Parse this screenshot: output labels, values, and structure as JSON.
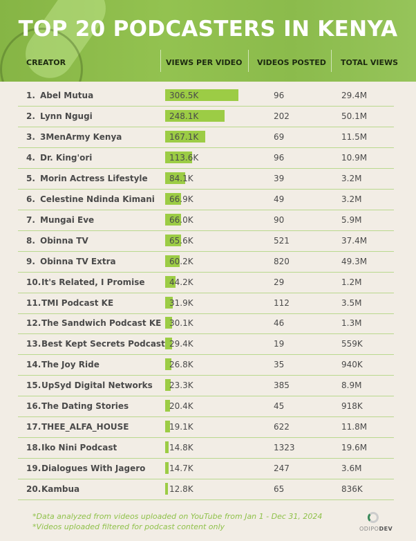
{
  "title": "TOP 20 PODCASTERS IN KENYA",
  "chart_data": {
    "type": "table",
    "title": "TOP 20 PODCASTERS IN KENYA",
    "columns": [
      "CREATOR",
      "VIEWS PER VIDEO",
      "VIDEOS POSTED",
      "TOTAL VIEWS"
    ],
    "bar_color": "#9ccc45",
    "rows": [
      {
        "rank": "1.",
        "creator": "Abel Mutua",
        "vpv": 306.5,
        "vpv_label": "306.5K",
        "videos": "96",
        "total": "29.4M"
      },
      {
        "rank": "2.",
        "creator": "Lynn Ngugi",
        "vpv": 248.1,
        "vpv_label": "248.1K",
        "videos": "202",
        "total": "50.1M"
      },
      {
        "rank": "3.",
        "creator": "3MenArmy Kenya",
        "vpv": 167.1,
        "vpv_label": "167.1K",
        "videos": "69",
        "total": "11.5M"
      },
      {
        "rank": "4.",
        "creator": "Dr. King'ori",
        "vpv": 113.6,
        "vpv_label": "113.6K",
        "videos": "96",
        "total": "10.9M"
      },
      {
        "rank": "5.",
        "creator": "Morin Actress Lifestyle",
        "vpv": 84.1,
        "vpv_label": "84.1K",
        "videos": "39",
        "total": "3.2M"
      },
      {
        "rank": "6.",
        "creator": "Celestine Ndinda Kimani",
        "vpv": 66.9,
        "vpv_label": "66.9K",
        "videos": "49",
        "total": "3.2M"
      },
      {
        "rank": "7.",
        "creator": "Mungai Eve",
        "vpv": 66.0,
        "vpv_label": "66.0K",
        "videos": "90",
        "total": "5.9M"
      },
      {
        "rank": "8.",
        "creator": "Obinna TV",
        "vpv": 65.6,
        "vpv_label": "65.6K",
        "videos": "521",
        "total": "37.4M"
      },
      {
        "rank": "9.",
        "creator": "Obinna TV Extra",
        "vpv": 60.2,
        "vpv_label": "60.2K",
        "videos": "820",
        "total": "49.3M"
      },
      {
        "rank": "10.",
        "creator": "It's Related, I Promise",
        "vpv": 44.2,
        "vpv_label": "44.2K",
        "videos": "29",
        "total": "1.2M"
      },
      {
        "rank": "11.",
        "creator": "TMI Podcast KE",
        "vpv": 31.9,
        "vpv_label": "31.9K",
        "videos": "112",
        "total": "3.5M"
      },
      {
        "rank": "12.",
        "creator": "The Sandwich Podcast KE",
        "vpv": 30.1,
        "vpv_label": "30.1K",
        "videos": "46",
        "total": "1.3M"
      },
      {
        "rank": "13.",
        "creator": "Best Kept Secrets Podcast",
        "vpv": 29.4,
        "vpv_label": "29.4K",
        "videos": "19",
        "total": "559K"
      },
      {
        "rank": "14.",
        "creator": "The Joy Ride",
        "vpv": 26.8,
        "vpv_label": "26.8K",
        "videos": "35",
        "total": "940K"
      },
      {
        "rank": "15.",
        "creator": "UpSyd Digital Networks",
        "vpv": 23.3,
        "vpv_label": "23.3K",
        "videos": "385",
        "total": "8.9M"
      },
      {
        "rank": "16.",
        "creator": "The Dating Stories",
        "vpv": 20.4,
        "vpv_label": "20.4K",
        "videos": "45",
        "total": "918K"
      },
      {
        "rank": "17.",
        "creator": "THEE_ALFA_HOUSE",
        "vpv": 19.1,
        "vpv_label": "19.1K",
        "videos": "622",
        "total": "11.8M"
      },
      {
        "rank": "18.",
        "creator": "Iko Nini Podcast",
        "vpv": 14.8,
        "vpv_label": "14.8K",
        "videos": "1323",
        "total": "19.6M"
      },
      {
        "rank": "19.",
        "creator": "Dialogues With Jagero",
        "vpv": 14.7,
        "vpv_label": "14.7K",
        "videos": "247",
        "total": "3.6M"
      },
      {
        "rank": "20.",
        "creator": "Kambua",
        "vpv": 12.8,
        "vpv_label": "12.8K",
        "videos": "65",
        "total": "836K"
      }
    ]
  },
  "footnotes": [
    "*Data analyzed from videos uploaded on YouTube from Jan 1 - Dec 31, 2024",
    "*Videos uploaded filtered for podcast content only"
  ],
  "logo": {
    "part1": "ODIPO",
    "part2": "DEV"
  }
}
